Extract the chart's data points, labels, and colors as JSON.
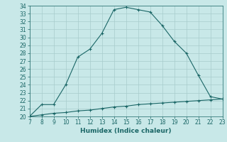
{
  "xlabel": "Humidex (Indice chaleur)",
  "xlim": [
    7,
    23
  ],
  "ylim": [
    20,
    34
  ],
  "xticks": [
    7,
    8,
    9,
    10,
    11,
    12,
    13,
    14,
    15,
    16,
    17,
    18,
    19,
    20,
    21,
    22,
    23
  ],
  "yticks": [
    20,
    21,
    22,
    23,
    24,
    25,
    26,
    27,
    28,
    29,
    30,
    31,
    32,
    33,
    34
  ],
  "background_color": "#c8e8e8",
  "grid_color": "#a8cccc",
  "line_color": "#1a6666",
  "line1_x": [
    7,
    8,
    9,
    10,
    11,
    12,
    13,
    14,
    15,
    16,
    17,
    18,
    19,
    20,
    21,
    22,
    23
  ],
  "line1_y": [
    20.0,
    21.5,
    21.5,
    24.0,
    27.5,
    28.5,
    30.5,
    33.5,
    33.8,
    33.5,
    33.2,
    31.5,
    29.5,
    28.0,
    25.2,
    22.5,
    22.2
  ],
  "line2_x": [
    7,
    8,
    9,
    10,
    11,
    12,
    13,
    14,
    15,
    16,
    17,
    18,
    19,
    20,
    21,
    22,
    23
  ],
  "line2_y": [
    20.0,
    20.2,
    20.4,
    20.5,
    20.7,
    20.8,
    21.0,
    21.2,
    21.3,
    21.5,
    21.6,
    21.7,
    21.8,
    21.9,
    22.0,
    22.1,
    22.2
  ],
  "tick_fontsize": 5.5,
  "xlabel_fontsize": 6.5
}
